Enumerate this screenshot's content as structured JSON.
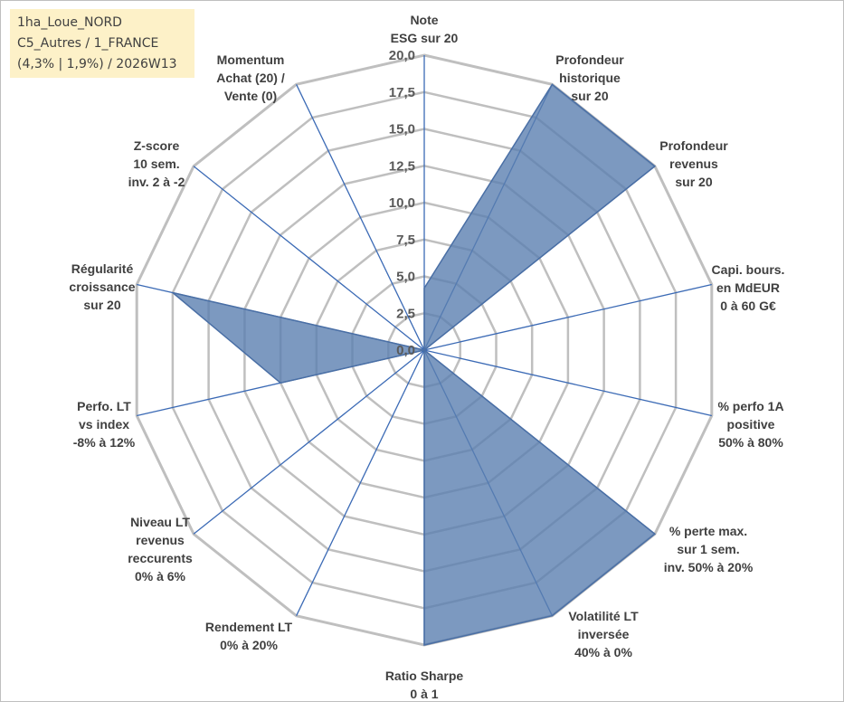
{
  "info_box": {
    "line1": "1ha_Loue_NORD",
    "line2": "C5_Autres / 1_FRANCE",
    "line3": "(4,3% | 1,9%) / 2026W13"
  },
  "chart_data": {
    "type": "radar",
    "title": "",
    "range": [
      0,
      20
    ],
    "ticks": [
      "0,0",
      "2,5",
      "5,0",
      "7,5",
      "10,0",
      "12,5",
      "15,0",
      "17,5",
      "20,0"
    ],
    "axes": [
      [
        "Note",
        "ESG sur 20"
      ],
      [
        "Profondeur",
        "historique",
        "sur 20"
      ],
      [
        "Profondeur",
        "revenus",
        "sur 20"
      ],
      [
        "Capi. bours.",
        "en MdEUR",
        "0 à 60 G€"
      ],
      [
        "% perfo 1A",
        "positive",
        "50% à 80%"
      ],
      [
        "% perte max.",
        "sur 1 sem.",
        "inv. 50% à 20%"
      ],
      [
        "Volatilité LT",
        "inversée",
        "40% à 0%"
      ],
      [
        "Ratio Sharpe",
        "0 à 1"
      ],
      [
        "Rendement LT",
        "0% à 20%"
      ],
      [
        "Niveau LT",
        "revenus",
        "reccurents",
        "0% à 6%"
      ],
      [
        "Perfo. LT",
        "vs index",
        "-8% à 12%"
      ],
      [
        "Régularité",
        "croissance",
        "sur 20"
      ],
      [
        "Z-score",
        "10 sem.",
        "inv. 2 à -2"
      ],
      [
        "Momentum",
        "Achat (20) /",
        "Vente (0)"
      ]
    ],
    "series": [
      {
        "values": [
          4.2,
          20,
          20,
          0,
          0,
          20,
          20,
          20,
          0,
          0,
          10,
          17.5,
          0,
          0
        ]
      }
    ],
    "colors": {
      "fill": "#5b7fb0",
      "stroke": "#4a6fa5",
      "grid": "#bfbfbf",
      "spoke": "#3b6ab5"
    },
    "grid": true,
    "legend": "none"
  }
}
